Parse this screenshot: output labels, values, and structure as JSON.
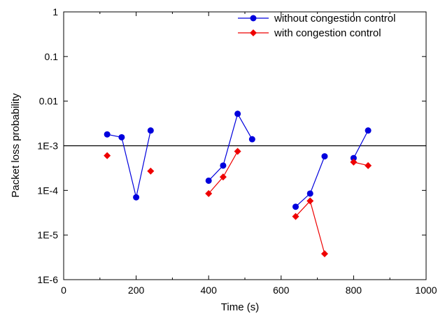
{
  "chart_data": {
    "type": "line",
    "title": "",
    "xlabel": "Time (s)",
    "ylabel": "Packet loss probability",
    "xlim": [
      0,
      1000
    ],
    "ylim": [
      1e-06,
      1
    ],
    "yscale": "log",
    "xticks": [
      0,
      200,
      400,
      600,
      800,
      1000
    ],
    "xtick_labels": [
      "0",
      "200",
      "400",
      "600",
      "800",
      "1000"
    ],
    "yticks": [
      1e-06,
      1e-05,
      0.0001,
      0.001,
      0.01,
      0.1,
      1
    ],
    "ytick_labels": [
      "1E-6",
      "1E-5",
      "1E-4",
      "1E-3",
      "0.01",
      "0.1",
      "1"
    ],
    "grid": false,
    "legend_position": "top-right",
    "reference_line": {
      "y": 0.001
    },
    "series": [
      {
        "name": "without congestion control",
        "color": "#0000dd",
        "marker": "circle",
        "segments": [
          [
            [
              120,
              0.0018
            ],
            [
              160,
              0.00155
            ],
            [
              200,
              7e-05
            ],
            [
              240,
              0.0022
            ]
          ],
          [
            [
              400,
              0.000165
            ],
            [
              440,
              0.00036
            ],
            [
              480,
              0.0052
            ],
            [
              520,
              0.0014
            ]
          ],
          [
            [
              640,
              4.3e-05
            ],
            [
              680,
              8.5e-05
            ],
            [
              720,
              0.00058
            ]
          ],
          [
            [
              800,
              0.00053
            ],
            [
              840,
              0.0022
            ]
          ]
        ]
      },
      {
        "name": "with congestion control",
        "color": "#ee0000",
        "marker": "diamond",
        "segments": [
          [
            [
              120,
              0.0006
            ]
          ],
          [
            [
              240,
              0.00027
            ]
          ],
          [
            [
              400,
              8.5e-05
            ],
            [
              440,
              0.0002
            ],
            [
              480,
              0.00075
            ]
          ],
          [
            [
              640,
              2.6e-05
            ],
            [
              680,
              5.8e-05
            ],
            [
              720,
              3.8e-06
            ]
          ],
          [
            [
              800,
              0.00043
            ],
            [
              840,
              0.00036
            ]
          ]
        ]
      }
    ]
  }
}
